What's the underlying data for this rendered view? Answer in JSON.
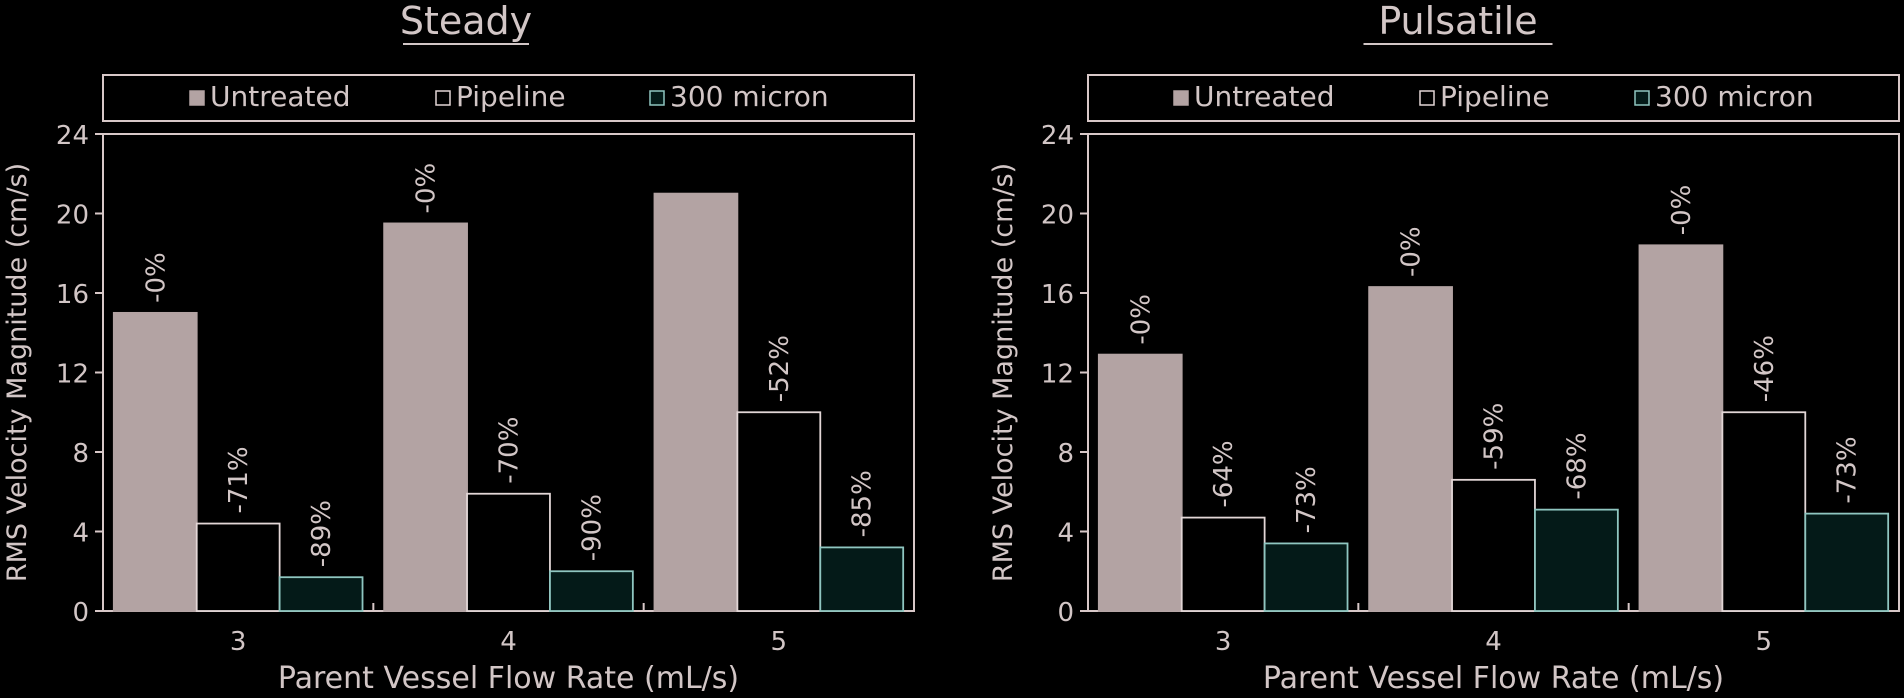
{
  "chart_data": [
    {
      "type": "bar",
      "title": "Steady",
      "xlabel": "Parent Vessel Flow Rate (mL/s)",
      "ylabel": "RMS Velocity Magnitude (cm/s)",
      "ylim": [
        0,
        24
      ],
      "yticks": [
        "0",
        "4",
        "8",
        "12",
        "16",
        "20",
        "24"
      ],
      "categories": [
        "3",
        "4",
        "5"
      ],
      "legend_position": "top",
      "series": [
        {
          "name": "Untreated",
          "values": [
            15.0,
            19.5,
            21.0
          ],
          "labels": [
            "-0%",
            "-0%",
            ""
          ]
        },
        {
          "name": "Pipeline",
          "values": [
            4.4,
            5.9,
            10.0
          ],
          "labels": [
            "-71%",
            "-70%",
            "-52%"
          ]
        },
        {
          "name": "300 micron",
          "values": [
            1.7,
            2.0,
            3.2
          ],
          "labels": [
            "-89%",
            "-90%",
            "-85%"
          ]
        }
      ]
    },
    {
      "type": "bar",
      "title": "Pulsatile",
      "xlabel": "Parent Vessel Flow Rate (mL/s)",
      "ylabel": "RMS Velocity Magnitude (cm/s)",
      "ylim": [
        0,
        24
      ],
      "yticks": [
        "0",
        "4",
        "8",
        "12",
        "16",
        "20",
        "24"
      ],
      "categories": [
        "3",
        "4",
        "5"
      ],
      "legend_position": "top",
      "series": [
        {
          "name": "Untreated",
          "values": [
            12.9,
            16.3,
            18.4
          ],
          "labels": [
            "-0%",
            "-0%",
            "-0%"
          ]
        },
        {
          "name": "Pipeline",
          "values": [
            4.7,
            6.6,
            10.0
          ],
          "labels": [
            "-64%",
            "-59%",
            "-46%"
          ]
        },
        {
          "name": "300 micron",
          "values": [
            3.4,
            5.1,
            4.9
          ],
          "labels": [
            "-73%",
            "-68%",
            "-73%"
          ]
        }
      ]
    }
  ],
  "colors": {
    "background": "#000000",
    "axis": "#d8c8c8",
    "text": "#d2c6c6",
    "series_fill": [
      "#b3a3a3",
      "#000000",
      "#041a18"
    ],
    "series_stroke": [
      "#b3a3a3",
      "#e2d6d6",
      "#8fc6c0"
    ]
  }
}
